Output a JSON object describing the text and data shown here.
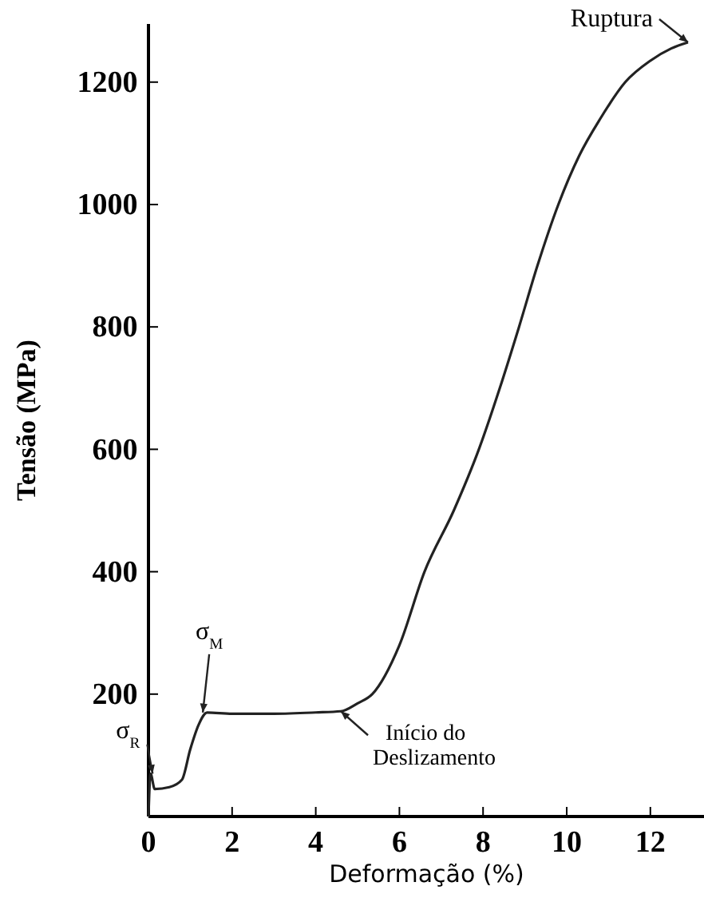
{
  "chart_data": {
    "type": "line",
    "xlabel": "Deformação (%)",
    "ylabel": "Tensão (MPa)",
    "xlim": [
      0,
      13.3
    ],
    "xticks": [
      0,
      2,
      4,
      6,
      8,
      10,
      12
    ],
    "ylim": [
      0,
      1295
    ],
    "yticks": [
      200,
      400,
      600,
      800,
      1000,
      1200
    ],
    "series": [
      {
        "color": "#222222",
        "x": [
          0,
          0.05,
          0.15,
          0.5,
          0.8,
          1.0,
          1.2,
          1.4,
          2,
          3,
          4,
          4.6,
          5,
          5.35,
          6,
          6.6,
          7.3,
          7.9,
          8.4,
          8.86,
          9.3,
          9.8,
          10.3,
          10.8,
          11.4,
          12,
          12.5,
          12.9
        ],
        "values": [
          0,
          70,
          45,
          48,
          60,
          110,
          150,
          170,
          168,
          168,
          170,
          172,
          185,
          200,
          280,
          400,
          500,
          600,
          700,
          800,
          900,
          1000,
          1080,
          1140,
          1200,
          1235,
          1255,
          1265
        ]
      }
    ],
    "annotations": [
      {
        "text": "σ$_{R}$",
        "x": 0.1,
        "y": 70
      },
      {
        "text": "σ$_{M}$",
        "x": 1.3,
        "y": 170
      },
      {
        "text": "Início do Deslizamento",
        "x": 4.6,
        "y": 172
      },
      {
        "text": "Ruptura",
        "x": 12.9,
        "y": 1265
      }
    ],
    "marker": "none",
    "line_style": "solid"
  }
}
